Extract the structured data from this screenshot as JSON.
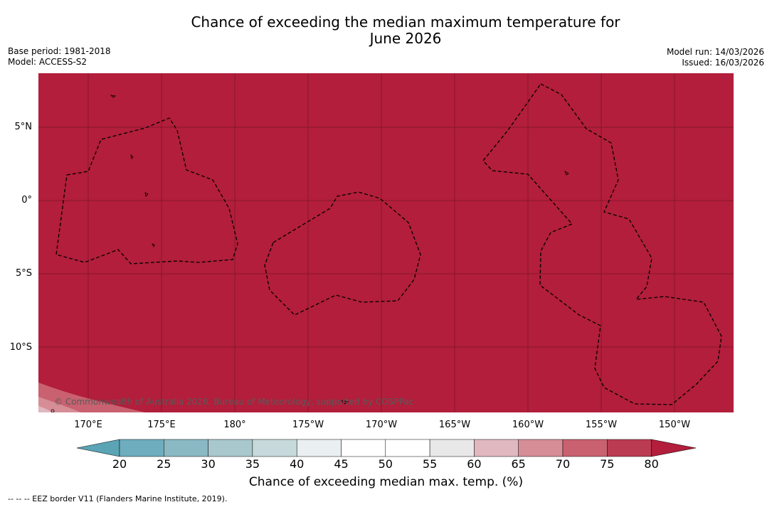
{
  "header": {
    "title_line1": "Chance of exceeding the median maximum temperature for",
    "title_line2": "June 2026",
    "base_period": "Base period: 1981-2018",
    "model": "Model: ACCESS-S2",
    "model_run": "Model run: 14/03/2026",
    "issued": "Issued: 16/03/2026"
  },
  "map": {
    "fill_color": "#b21e3b",
    "border_color": "#000000",
    "copyright": "© Commonwealth of Australia 2026, Bureau of Meteorology, supported by COSPPac",
    "lat_labels": [
      "5°N",
      "0°",
      "5°S",
      "10°S"
    ],
    "lon_labels": [
      "170°E",
      "175°E",
      "180°",
      "175°W",
      "170°W",
      "165°W",
      "160°W",
      "155°W",
      "150°W"
    ]
  },
  "colorbar": {
    "ticks": [
      "20",
      "25",
      "30",
      "35",
      "40",
      "45",
      "50",
      "55",
      "60",
      "65",
      "70",
      "75",
      "80"
    ],
    "colors": [
      "#5aa4b6",
      "#6eadbe",
      "#8ab9c4",
      "#a9c8cd",
      "#c8d9dc",
      "#eaeff1",
      "#ffffff",
      "#ffffff",
      "#e8e8e8",
      "#e0b8bf",
      "#d68d96",
      "#c96170",
      "#bb3c52",
      "#b21e3b"
    ],
    "label": "Chance of exceeding median max. temp. (%)"
  },
  "footer": {
    "eez_note": "--  --  -- EEZ border V11 (Flanders Marine Institute, 2019)."
  }
}
